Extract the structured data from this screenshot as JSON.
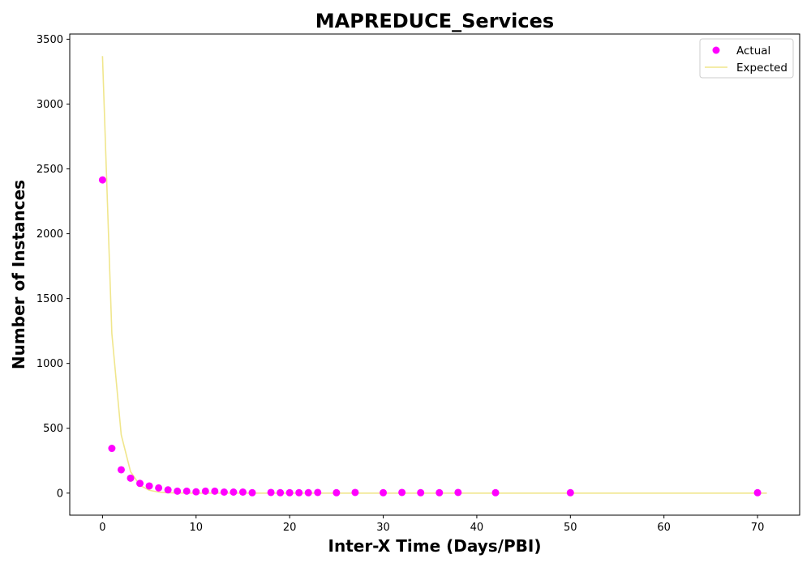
{
  "chart_data": {
    "type": "scatter",
    "title": "MAPREDUCE_Services",
    "xlabel": "Inter-X Time (Days/PBI)",
    "ylabel": "Number of Instances",
    "xlim": [
      -3.5,
      74.5
    ],
    "ylim": [
      -170,
      3540
    ],
    "xticks": [
      0,
      10,
      20,
      30,
      40,
      50,
      60,
      70
    ],
    "yticks": [
      0,
      500,
      1000,
      1500,
      2000,
      2500,
      3000,
      3500
    ],
    "grid": false,
    "legend_position": "top-right",
    "series": [
      {
        "name": "Actual",
        "kind": "scatter",
        "color": "#ff00ff",
        "points": [
          [
            0,
            2415
          ],
          [
            1,
            345
          ],
          [
            2,
            180
          ],
          [
            3,
            115
          ],
          [
            4,
            75
          ],
          [
            5,
            55
          ],
          [
            6,
            40
          ],
          [
            7,
            25
          ],
          [
            8,
            15
          ],
          [
            9,
            15
          ],
          [
            10,
            10
          ],
          [
            11,
            15
          ],
          [
            12,
            15
          ],
          [
            13,
            8
          ],
          [
            14,
            8
          ],
          [
            15,
            8
          ],
          [
            16,
            3
          ],
          [
            18,
            5
          ],
          [
            19,
            3
          ],
          [
            20,
            3
          ],
          [
            21,
            3
          ],
          [
            22,
            3
          ],
          [
            23,
            5
          ],
          [
            25,
            3
          ],
          [
            27,
            5
          ],
          [
            30,
            3
          ],
          [
            32,
            5
          ],
          [
            34,
            3
          ],
          [
            36,
            3
          ],
          [
            38,
            5
          ],
          [
            42,
            3
          ],
          [
            50,
            3
          ],
          [
            70,
            3
          ]
        ]
      },
      {
        "name": "Expected",
        "kind": "line",
        "color": "#f0e68c",
        "points": [
          [
            0,
            3370
          ],
          [
            1,
            1230
          ],
          [
            2,
            450
          ],
          [
            3,
            165
          ],
          [
            4,
            60
          ],
          [
            5,
            22
          ],
          [
            6,
            8
          ],
          [
            7,
            3
          ],
          [
            8,
            1
          ],
          [
            10,
            0
          ],
          [
            20,
            0
          ],
          [
            30,
            0
          ],
          [
            40,
            0
          ],
          [
            50,
            0
          ],
          [
            60,
            0
          ],
          [
            71,
            0
          ]
        ]
      }
    ]
  }
}
